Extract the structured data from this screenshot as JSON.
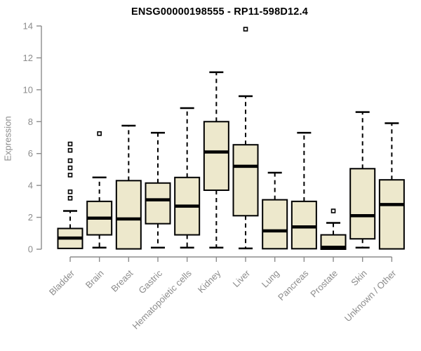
{
  "chart_data": {
    "type": "boxplot",
    "title": "ENSG00000198555 - RP11-598D12.4",
    "ylabel": "Expression",
    "xlabel": "",
    "ylim": [
      0,
      14
    ],
    "yticks": [
      0,
      2,
      4,
      6,
      8,
      10,
      12,
      14
    ],
    "grid": false,
    "legend": "none",
    "categories": [
      "Bladder",
      "Brain",
      "Breast",
      "Gastric",
      "Hematopoietic cells",
      "Kidney",
      "Liver",
      "Lung",
      "Pancreas",
      "Prostate",
      "Skin",
      "Unknown / Other"
    ],
    "series": [
      {
        "name": "Bladder",
        "low": 0,
        "q1": 0.05,
        "median": 0.7,
        "q3": 1.3,
        "high": 2.4,
        "outliers": [
          3.2,
          3.6,
          4.65,
          5.1,
          5.55,
          6.2,
          6.6
        ]
      },
      {
        "name": "Brain",
        "low": 0.1,
        "q1": 0.9,
        "median": 1.95,
        "q3": 3.0,
        "high": 4.5,
        "outliers": [
          7.25
        ]
      },
      {
        "name": "Breast",
        "low": 0,
        "q1": 0.02,
        "median": 1.9,
        "q3": 4.3,
        "high": 7.75,
        "outliers": []
      },
      {
        "name": "Gastric",
        "low": 0.1,
        "q1": 1.6,
        "median": 3.1,
        "q3": 4.15,
        "high": 7.3,
        "outliers": []
      },
      {
        "name": "Hematopoietic cells",
        "low": 0.1,
        "q1": 0.9,
        "median": 2.7,
        "q3": 4.5,
        "high": 8.85,
        "outliers": []
      },
      {
        "name": "Kidney",
        "low": 0.1,
        "q1": 3.7,
        "median": 6.1,
        "q3": 8.0,
        "high": 11.1,
        "outliers": []
      },
      {
        "name": "Liver",
        "low": 0.05,
        "q1": 2.1,
        "median": 5.2,
        "q3": 6.55,
        "high": 9.6,
        "outliers": [
          13.8
        ]
      },
      {
        "name": "Lung",
        "low": 0,
        "q1": 0.03,
        "median": 1.15,
        "q3": 3.1,
        "high": 4.8,
        "outliers": []
      },
      {
        "name": "Pancreas",
        "low": 0,
        "q1": 0.03,
        "median": 1.4,
        "q3": 3.0,
        "high": 7.3,
        "outliers": []
      },
      {
        "name": "Prostate",
        "low": 0,
        "q1": 0,
        "median": 0.12,
        "q3": 0.9,
        "high": 1.65,
        "outliers": [
          2.4
        ]
      },
      {
        "name": "Skin",
        "low": 0.1,
        "q1": 0.65,
        "median": 2.1,
        "q3": 5.05,
        "high": 8.6,
        "outliers": []
      },
      {
        "name": "Unknown / Other",
        "low": 0,
        "q1": 0.02,
        "median": 2.8,
        "q3": 4.35,
        "high": 7.9,
        "outliers": []
      }
    ],
    "colors": {
      "box_fill": "#EDE8CC",
      "box_border": "#000000",
      "median": "#000000",
      "whisker": "#000000",
      "outlier_stroke": "#000000",
      "outlier_fill": "#FFFFFF",
      "axis": "#8C8C8C",
      "tick_label": "#8C8C8C",
      "title": "#000000",
      "background": "#FFFFFF"
    }
  }
}
